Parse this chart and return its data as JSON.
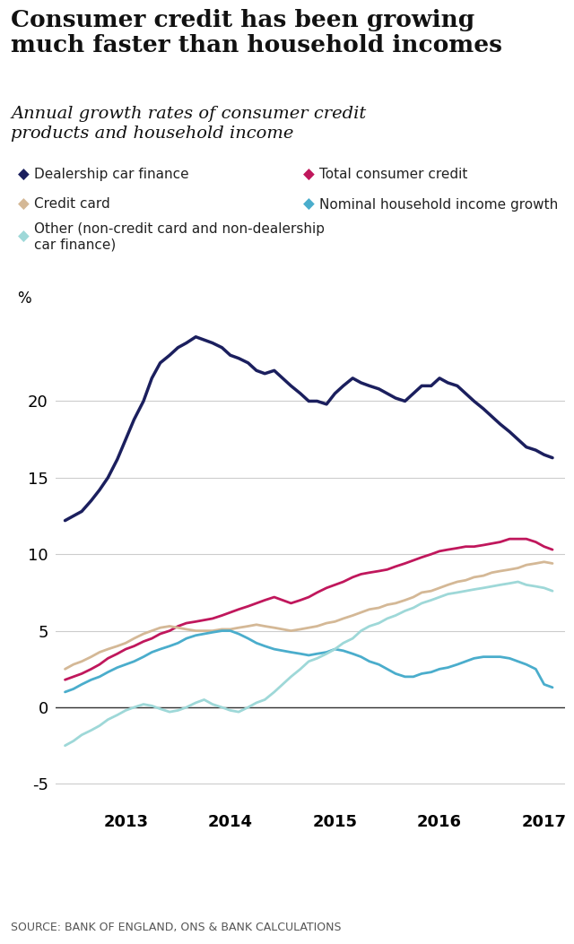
{
  "title": "Consumer credit has been growing\nmuch faster than household incomes",
  "subtitle": "Annual growth rates of consumer credit\nproducts and household income",
  "source": "SOURCE: BANK OF ENGLAND, ONS & BANK CALCULATIONS",
  "ylabel": "%",
  "ylim": [
    -6.5,
    26
  ],
  "yticks": [
    -5,
    0,
    5,
    10,
    15,
    20
  ],
  "background_color": "#ffffff",
  "series": {
    "dealership": {
      "label": "Dealership car finance",
      "color": "#1b1f5e",
      "x": [
        2012.42,
        2012.5,
        2012.58,
        2012.67,
        2012.75,
        2012.83,
        2012.92,
        2013.0,
        2013.08,
        2013.17,
        2013.25,
        2013.33,
        2013.42,
        2013.5,
        2013.58,
        2013.67,
        2013.75,
        2013.83,
        2013.92,
        2014.0,
        2014.08,
        2014.17,
        2014.25,
        2014.33,
        2014.42,
        2014.5,
        2014.58,
        2014.67,
        2014.75,
        2014.83,
        2014.92,
        2015.0,
        2015.08,
        2015.17,
        2015.25,
        2015.33,
        2015.42,
        2015.5,
        2015.58,
        2015.67,
        2015.75,
        2015.83,
        2015.92,
        2016.0,
        2016.08,
        2016.17,
        2016.25,
        2016.33,
        2016.42,
        2016.5,
        2016.58,
        2016.67,
        2016.75,
        2016.83,
        2016.92,
        2017.0,
        2017.08
      ],
      "y": [
        12.2,
        12.5,
        12.8,
        13.5,
        14.2,
        15.0,
        16.2,
        17.5,
        18.8,
        20.0,
        21.5,
        22.5,
        23.0,
        23.5,
        23.8,
        24.2,
        24.0,
        23.8,
        23.5,
        23.0,
        22.8,
        22.5,
        22.0,
        21.8,
        22.0,
        21.5,
        21.0,
        20.5,
        20.0,
        20.0,
        19.8,
        20.5,
        21.0,
        21.5,
        21.2,
        21.0,
        20.8,
        20.5,
        20.2,
        20.0,
        20.5,
        21.0,
        21.0,
        21.5,
        21.2,
        21.0,
        20.5,
        20.0,
        19.5,
        19.0,
        18.5,
        18.0,
        17.5,
        17.0,
        16.8,
        16.5,
        16.3
      ]
    },
    "total_credit": {
      "label": "Total consumer credit",
      "color": "#c0175c",
      "x": [
        2012.42,
        2012.5,
        2012.58,
        2012.67,
        2012.75,
        2012.83,
        2012.92,
        2013.0,
        2013.08,
        2013.17,
        2013.25,
        2013.33,
        2013.42,
        2013.5,
        2013.58,
        2013.67,
        2013.75,
        2013.83,
        2013.92,
        2014.0,
        2014.08,
        2014.17,
        2014.25,
        2014.33,
        2014.42,
        2014.5,
        2014.58,
        2014.67,
        2014.75,
        2014.83,
        2014.92,
        2015.0,
        2015.08,
        2015.17,
        2015.25,
        2015.33,
        2015.42,
        2015.5,
        2015.58,
        2015.67,
        2015.75,
        2015.83,
        2015.92,
        2016.0,
        2016.08,
        2016.17,
        2016.25,
        2016.33,
        2016.42,
        2016.5,
        2016.58,
        2016.67,
        2016.75,
        2016.83,
        2016.92,
        2017.0,
        2017.08
      ],
      "y": [
        1.8,
        2.0,
        2.2,
        2.5,
        2.8,
        3.2,
        3.5,
        3.8,
        4.0,
        4.3,
        4.5,
        4.8,
        5.0,
        5.3,
        5.5,
        5.6,
        5.7,
        5.8,
        6.0,
        6.2,
        6.4,
        6.6,
        6.8,
        7.0,
        7.2,
        7.0,
        6.8,
        7.0,
        7.2,
        7.5,
        7.8,
        8.0,
        8.2,
        8.5,
        8.7,
        8.8,
        8.9,
        9.0,
        9.2,
        9.4,
        9.6,
        9.8,
        10.0,
        10.2,
        10.3,
        10.4,
        10.5,
        10.5,
        10.6,
        10.7,
        10.8,
        11.0,
        11.0,
        11.0,
        10.8,
        10.5,
        10.3
      ]
    },
    "credit_card": {
      "label": "Credit card",
      "color": "#d4b896",
      "x": [
        2012.42,
        2012.5,
        2012.58,
        2012.67,
        2012.75,
        2012.83,
        2012.92,
        2013.0,
        2013.08,
        2013.17,
        2013.25,
        2013.33,
        2013.42,
        2013.5,
        2013.58,
        2013.67,
        2013.75,
        2013.83,
        2013.92,
        2014.0,
        2014.08,
        2014.17,
        2014.25,
        2014.33,
        2014.42,
        2014.5,
        2014.58,
        2014.67,
        2014.75,
        2014.83,
        2014.92,
        2015.0,
        2015.08,
        2015.17,
        2015.25,
        2015.33,
        2015.42,
        2015.5,
        2015.58,
        2015.67,
        2015.75,
        2015.83,
        2015.92,
        2016.0,
        2016.08,
        2016.17,
        2016.25,
        2016.33,
        2016.42,
        2016.5,
        2016.58,
        2016.67,
        2016.75,
        2016.83,
        2016.92,
        2017.0,
        2017.08
      ],
      "y": [
        2.5,
        2.8,
        3.0,
        3.3,
        3.6,
        3.8,
        4.0,
        4.2,
        4.5,
        4.8,
        5.0,
        5.2,
        5.3,
        5.2,
        5.1,
        5.0,
        5.0,
        5.0,
        5.1,
        5.1,
        5.2,
        5.3,
        5.4,
        5.3,
        5.2,
        5.1,
        5.0,
        5.1,
        5.2,
        5.3,
        5.5,
        5.6,
        5.8,
        6.0,
        6.2,
        6.4,
        6.5,
        6.7,
        6.8,
        7.0,
        7.2,
        7.5,
        7.6,
        7.8,
        8.0,
        8.2,
        8.3,
        8.5,
        8.6,
        8.8,
        8.9,
        9.0,
        9.1,
        9.3,
        9.4,
        9.5,
        9.4
      ]
    },
    "household_income": {
      "label": "Nominal household income growth",
      "color": "#4aadcc",
      "x": [
        2012.42,
        2012.5,
        2012.58,
        2012.67,
        2012.75,
        2012.83,
        2012.92,
        2013.0,
        2013.08,
        2013.17,
        2013.25,
        2013.33,
        2013.42,
        2013.5,
        2013.58,
        2013.67,
        2013.75,
        2013.83,
        2013.92,
        2014.0,
        2014.08,
        2014.17,
        2014.25,
        2014.33,
        2014.42,
        2014.5,
        2014.58,
        2014.67,
        2014.75,
        2014.83,
        2014.92,
        2015.0,
        2015.08,
        2015.17,
        2015.25,
        2015.33,
        2015.42,
        2015.5,
        2015.58,
        2015.67,
        2015.75,
        2015.83,
        2015.92,
        2016.0,
        2016.08,
        2016.17,
        2016.25,
        2016.33,
        2016.42,
        2016.5,
        2016.58,
        2016.67,
        2016.75,
        2016.83,
        2016.92,
        2017.0,
        2017.08
      ],
      "y": [
        1.0,
        1.2,
        1.5,
        1.8,
        2.0,
        2.3,
        2.6,
        2.8,
        3.0,
        3.3,
        3.6,
        3.8,
        4.0,
        4.2,
        4.5,
        4.7,
        4.8,
        4.9,
        5.0,
        5.0,
        4.8,
        4.5,
        4.2,
        4.0,
        3.8,
        3.7,
        3.6,
        3.5,
        3.4,
        3.5,
        3.6,
        3.8,
        3.7,
        3.5,
        3.3,
        3.0,
        2.8,
        2.5,
        2.2,
        2.0,
        2.0,
        2.2,
        2.3,
        2.5,
        2.6,
        2.8,
        3.0,
        3.2,
        3.3,
        3.3,
        3.3,
        3.2,
        3.0,
        2.8,
        2.5,
        1.5,
        1.3
      ]
    },
    "other": {
      "label": "Other (non-credit card and non-dealership\ncar finance)",
      "color": "#9ed8d8",
      "x": [
        2012.42,
        2012.5,
        2012.58,
        2012.67,
        2012.75,
        2012.83,
        2012.92,
        2013.0,
        2013.08,
        2013.17,
        2013.25,
        2013.33,
        2013.42,
        2013.5,
        2013.58,
        2013.67,
        2013.75,
        2013.83,
        2013.92,
        2014.0,
        2014.08,
        2014.17,
        2014.25,
        2014.33,
        2014.42,
        2014.5,
        2014.58,
        2014.67,
        2014.75,
        2014.83,
        2014.92,
        2015.0,
        2015.08,
        2015.17,
        2015.25,
        2015.33,
        2015.42,
        2015.5,
        2015.58,
        2015.67,
        2015.75,
        2015.83,
        2015.92,
        2016.0,
        2016.08,
        2016.17,
        2016.25,
        2016.33,
        2016.42,
        2016.5,
        2016.58,
        2016.67,
        2016.75,
        2016.83,
        2016.92,
        2017.0,
        2017.08
      ],
      "y": [
        -2.5,
        -2.2,
        -1.8,
        -1.5,
        -1.2,
        -0.8,
        -0.5,
        -0.2,
        0.0,
        0.2,
        0.1,
        -0.1,
        -0.3,
        -0.2,
        0.0,
        0.3,
        0.5,
        0.2,
        0.0,
        -0.2,
        -0.3,
        0.0,
        0.3,
        0.5,
        1.0,
        1.5,
        2.0,
        2.5,
        3.0,
        3.2,
        3.5,
        3.8,
        4.2,
        4.5,
        5.0,
        5.3,
        5.5,
        5.8,
        6.0,
        6.3,
        6.5,
        6.8,
        7.0,
        7.2,
        7.4,
        7.5,
        7.6,
        7.7,
        7.8,
        7.9,
        8.0,
        8.1,
        8.2,
        8.0,
        7.9,
        7.8,
        7.6
      ]
    }
  },
  "legend": [
    [
      {
        "key": "dealership",
        "label": "Dealership car finance"
      },
      {
        "key": "total_credit",
        "label": "Total consumer credit"
      }
    ],
    [
      {
        "key": "credit_card",
        "label": "Credit card"
      },
      {
        "key": "household_income",
        "label": "Nominal household income growth"
      }
    ],
    [
      {
        "key": "other",
        "label": "Other (non-credit card and non-dealership\ncar finance)"
      }
    ]
  ]
}
